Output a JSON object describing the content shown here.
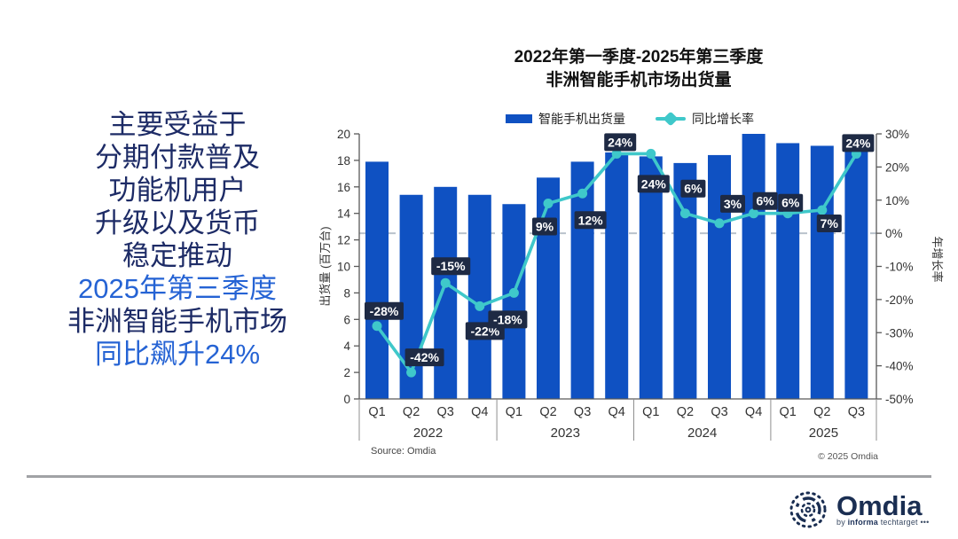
{
  "slide": {
    "headline": {
      "lines": [
        {
          "text": "主要受益于",
          "tone": "navy"
        },
        {
          "text": "分期付款普及",
          "tone": "navy"
        },
        {
          "text": "功能机用户",
          "tone": "navy"
        },
        {
          "text": "升级以及货币",
          "tone": "navy"
        },
        {
          "text": "稳定推动",
          "tone": "navy"
        },
        {
          "text": "2025年第三季度",
          "tone": "blue"
        },
        {
          "text": "非洲智能手机市场",
          "tone": "navy"
        },
        {
          "text": "同比飙升24%",
          "tone": "blue"
        }
      ],
      "navy_hex": "#1d2b66",
      "blue_hex": "#2563d4"
    },
    "footer": {
      "logo_text": "Omdia",
      "logo_sub_by": "by",
      "logo_sub_brand": "informa",
      "logo_sub_rest": "techtarget",
      "logo_dots": "•••"
    }
  },
  "chart_data": {
    "type": "bar",
    "title_line1": "2022年第一季度-2025年第三季度",
    "title_line2": "非洲智能手机市场出货量",
    "legend": [
      {
        "label": "智能手机出货量",
        "marker": "bar-swatch",
        "color": "#0f51c2"
      },
      {
        "label": "同比增长率",
        "marker": "line-marker",
        "color": "#3fc8ca"
      }
    ],
    "x_quarters": [
      "Q1",
      "Q2",
      "Q3",
      "Q4",
      "Q1",
      "Q2",
      "Q3",
      "Q4",
      "Q1",
      "Q2",
      "Q3",
      "Q4",
      "Q1",
      "Q2",
      "Q3"
    ],
    "year_groups": [
      {
        "label": "2022",
        "count": 4
      },
      {
        "label": "2023",
        "count": 4
      },
      {
        "label": "2024",
        "count": 4
      },
      {
        "label": "2025",
        "count": 3
      }
    ],
    "series": [
      {
        "name": "智能手机出货量",
        "type": "bar",
        "axis": "left",
        "unit": "百万台",
        "values": [
          17.9,
          15.4,
          16.0,
          15.4,
          14.7,
          16.7,
          17.9,
          18.6,
          18.3,
          17.8,
          18.4,
          20.0,
          19.3,
          19.1,
          19.6
        ]
      },
      {
        "name": "同比增长率",
        "type": "line",
        "axis": "right",
        "unit": "%",
        "values": [
          -28,
          -42,
          -15,
          -22,
          -18,
          9,
          12,
          24,
          24,
          6,
          3,
          6,
          6,
          7,
          24
        ],
        "labels": [
          "-28%",
          "-42%",
          "-15%",
          "-22%",
          "-18%",
          "9%",
          "12%",
          "24%",
          "24%",
          "6%",
          "3%",
          "6%",
          "6%",
          "7%",
          "24%"
        ]
      }
    ],
    "left_axis": {
      "title": "出货量 (百万台)",
      "min": 0,
      "max": 20,
      "step": 2
    },
    "right_axis": {
      "title": "年增长率",
      "min": -50,
      "max": 30,
      "step": 10,
      "suffix": "%"
    },
    "zero_line_at_right_axis": 0,
    "grid": "zero-dash-only",
    "legend_position": "top-center",
    "source": "Source: Omdia",
    "copyright": "© 2025 Omdia",
    "colors": {
      "bar": "#0f51c2",
      "line": "#3fc8ca",
      "label_box": "#1e2a44",
      "label_text": "#ffffff",
      "axis": "#595959",
      "tick_text": "#333333",
      "zero_dash": "#b9c2cc"
    }
  }
}
